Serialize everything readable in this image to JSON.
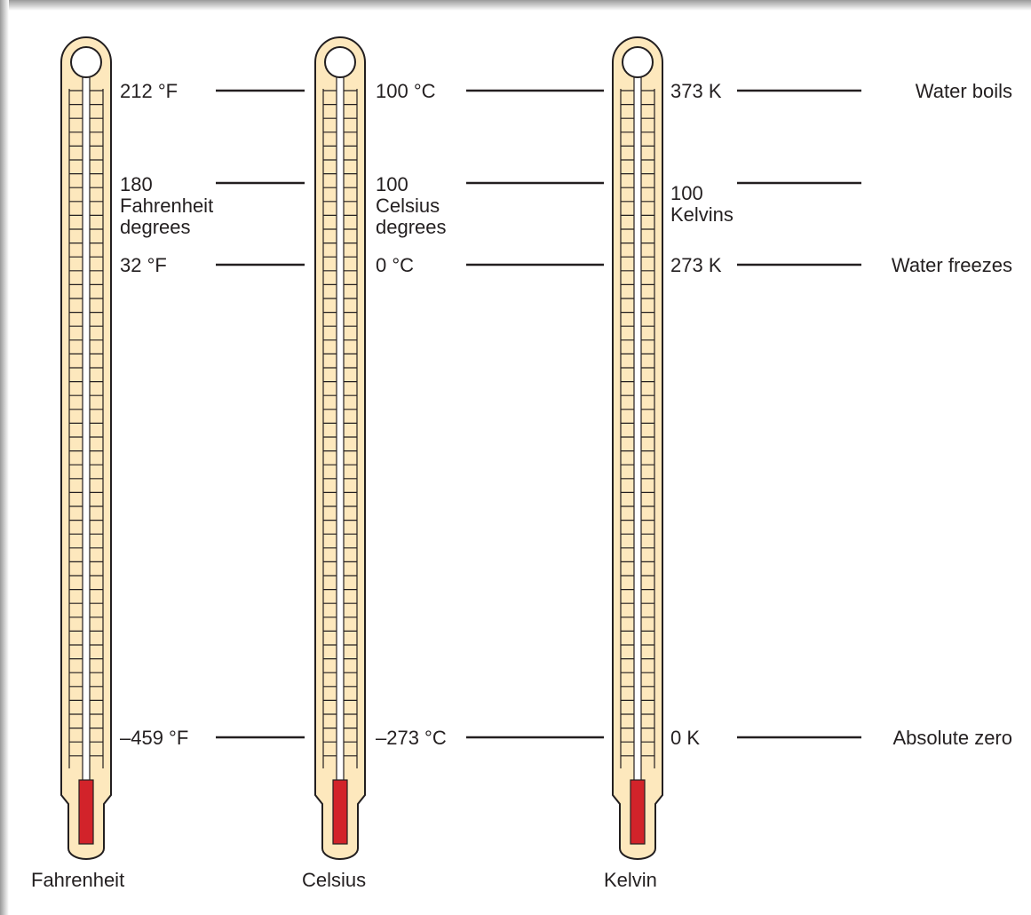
{
  "thermometers": [
    {
      "name": "Fahrenheit",
      "boils": "212 °F",
      "interval": [
        "180",
        "Fahrenheit",
        "degrees"
      ],
      "freezes": "32 °F",
      "zero": "–459 °F"
    },
    {
      "name": "Celsius",
      "boils": "100 °C",
      "interval": [
        "100",
        "Celsius",
        "degrees"
      ],
      "freezes": "0 °C",
      "zero": "–273 °C"
    },
    {
      "name": "Kelvin",
      "boils": "373 K",
      "interval": [
        "100",
        "Kelvins"
      ],
      "freezes": "273 K",
      "zero": "0 K"
    }
  ],
  "events": {
    "boils": "Water boils",
    "freezes": "Water freezes",
    "zero": "Absolute zero"
  }
}
